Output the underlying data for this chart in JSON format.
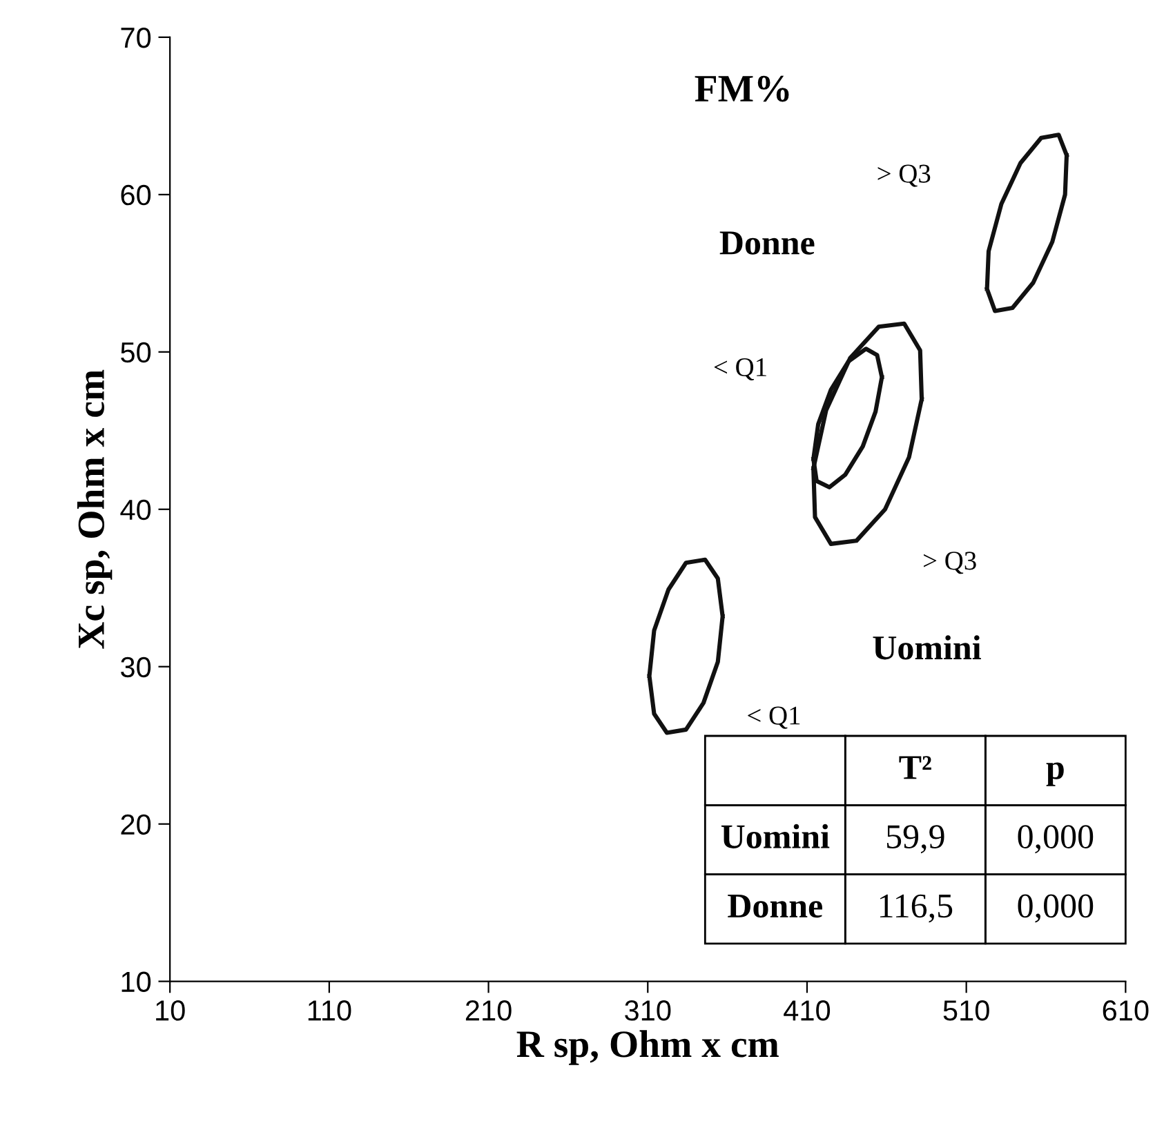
{
  "chart_data": {
    "type": "line",
    "title": "FM%",
    "xlabel": "R sp, Ohm x cm",
    "ylabel": "Xc sp, Ohm x cm",
    "xlim": [
      10,
      610
    ],
    "xticks": [
      10,
      110,
      210,
      310,
      410,
      510,
      610
    ],
    "ylim": [
      10,
      70
    ],
    "yticks": [
      10,
      20,
      30,
      40,
      50,
      60,
      70
    ],
    "grid": false,
    "legend": false,
    "marker": "none",
    "line_style": "solid",
    "series": [
      {
        "color": "#111111",
        "x": [
          311,
          314,
          323,
          334,
          346,
          354,
          357,
          null,
          311,
          314,
          322,
          334,
          345,
          354,
          357
        ],
        "values": [
          29.4,
          32.3,
          34.9,
          36.6,
          36.8,
          35.6,
          33.2,
          null,
          29.4,
          27.0,
          25.8,
          26.0,
          27.7,
          30.3,
          33.2
        ]
      },
      {
        "color": "#111111",
        "x": [
          414,
          422,
          437,
          455,
          471,
          481,
          482,
          null,
          414,
          415,
          425,
          441,
          459,
          474,
          482
        ],
        "values": [
          42.6,
          46.3,
          49.6,
          51.6,
          51.8,
          50.1,
          47.0,
          null,
          42.6,
          39.5,
          37.8,
          38.0,
          40.0,
          43.3,
          47.0
        ]
      },
      {
        "color": "#111111",
        "x": [
          414,
          417,
          425,
          436,
          447,
          454,
          457,
          null,
          414,
          416,
          424,
          434,
          445,
          453,
          457
        ],
        "values": [
          43.2,
          45.4,
          47.6,
          49.4,
          50.2,
          49.8,
          48.4,
          null,
          43.2,
          41.8,
          41.4,
          42.2,
          44.0,
          46.2,
          48.4
        ]
      },
      {
        "color": "#111111",
        "x": [
          523,
          524,
          532,
          544,
          557,
          568,
          573,
          null,
          523,
          528,
          539,
          552,
          564,
          572,
          573
        ],
        "values": [
          54.0,
          56.4,
          59.4,
          62.0,
          63.6,
          63.8,
          62.5,
          null,
          54.0,
          52.6,
          52.8,
          54.4,
          57.0,
          60.0,
          62.5
        ]
      }
    ],
    "annotations": [
      "> Q3",
      "Donne",
      "< Q1",
      "> Q3",
      "Uomini",
      "< Q1",
      "T²",
      "p",
      "Uomini",
      "59,9",
      "0,000",
      "Donne",
      "116,5",
      "0,000"
    ]
  }
}
